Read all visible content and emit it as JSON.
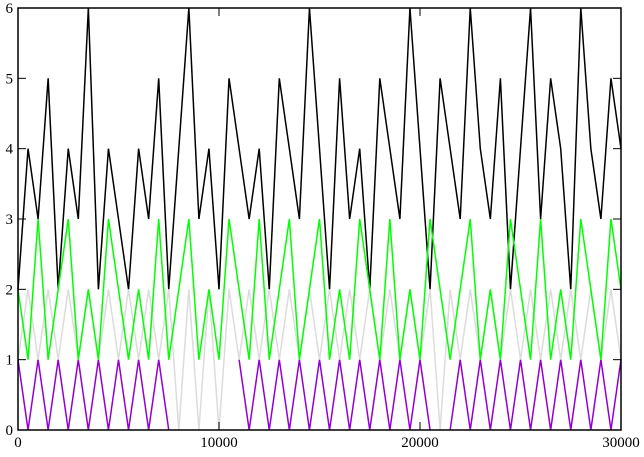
{
  "chart_data": {
    "type": "line",
    "x": [
      0,
      500,
      1000,
      1500,
      2000,
      2500,
      3000,
      3500,
      4000,
      4500,
      5000,
      5500,
      6000,
      6500,
      7000,
      7500,
      8000,
      8500,
      9000,
      9500,
      10000,
      10500,
      11000,
      11500,
      12000,
      12500,
      13000,
      13500,
      14000,
      14500,
      15000,
      15500,
      16000,
      16500,
      17000,
      17500,
      18000,
      18500,
      19000,
      19500,
      20000,
      20500,
      21000,
      21500,
      22000,
      22500,
      23000,
      23500,
      24000,
      24500,
      25000,
      25500,
      26000,
      26500,
      27000,
      27500,
      28000,
      28500,
      29000,
      29500,
      30000
    ],
    "series": [
      {
        "color": "#9400d3",
        "values": [
          1,
          0,
          1,
          0,
          1,
          0,
          1,
          0,
          1,
          0,
          1,
          0,
          1,
          0,
          1,
          0,
          null,
          null,
          null,
          null,
          null,
          null,
          1,
          0,
          1,
          0,
          1,
          0,
          1,
          0,
          1,
          0,
          1,
          0,
          1,
          0,
          1,
          0,
          1,
          0,
          1,
          0,
          null,
          0,
          1,
          0,
          1,
          0,
          1,
          0,
          1,
          0,
          1,
          0,
          1,
          0,
          1,
          0,
          1,
          0,
          1
        ]
      },
      {
        "color": "#000000",
        "values": [
          2,
          4,
          3,
          5,
          2,
          4,
          3,
          6,
          2,
          4,
          3,
          2,
          4,
          3,
          5,
          2,
          4,
          6,
          3,
          4,
          2,
          5,
          4,
          3,
          4,
          2,
          5,
          4,
          3,
          6,
          4,
          2,
          5,
          3,
          4,
          2,
          5,
          4,
          3,
          6,
          4,
          2,
          5,
          4,
          3,
          6,
          4,
          3,
          5,
          2,
          4,
          6,
          3,
          5,
          4,
          2,
          6,
          4,
          3,
          5,
          4
        ]
      },
      {
        "color": "#dcdcdc",
        "values": [
          1,
          2,
          1,
          2,
          1,
          2,
          1,
          2,
          1,
          2,
          1,
          2,
          1,
          2,
          1,
          2,
          0,
          2,
          0,
          2,
          0,
          2,
          1,
          2,
          1,
          2,
          1,
          2,
          1,
          2,
          1,
          2,
          1,
          2,
          1,
          2,
          1,
          2,
          1,
          2,
          1,
          2,
          0,
          2,
          1,
          2,
          1,
          2,
          1,
          2,
          1,
          2,
          1,
          2,
          1,
          2,
          1,
          2,
          1,
          2,
          1
        ]
      },
      {
        "color": "#00ff00",
        "values": [
          2,
          1,
          3,
          1,
          2,
          3,
          1,
          2,
          1,
          3,
          2,
          1,
          2,
          1,
          3,
          1,
          2,
          3,
          1,
          2,
          1,
          3,
          2,
          1,
          3,
          1,
          2,
          3,
          1,
          2,
          3,
          1,
          2,
          1,
          3,
          2,
          1,
          3,
          1,
          2,
          1,
          3,
          2,
          1,
          2,
          3,
          1,
          2,
          1,
          3,
          2,
          1,
          3,
          1,
          2,
          1,
          3,
          2,
          1,
          3,
          2
        ]
      }
    ],
    "xlim": [
      0,
      30000
    ],
    "xticks": [
      0,
      10000,
      20000,
      30000
    ],
    "ylim": [
      0,
      6
    ],
    "yticks": [
      0,
      1,
      2,
      3,
      4,
      5,
      6
    ]
  }
}
